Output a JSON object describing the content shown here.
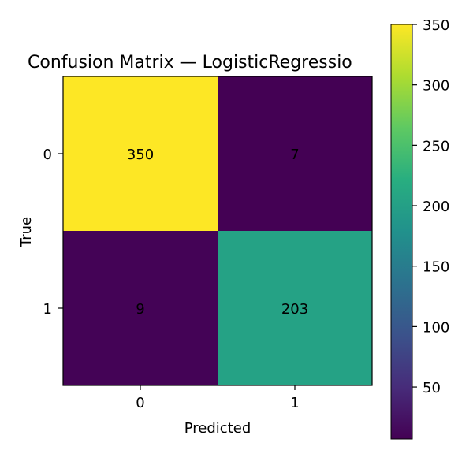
{
  "chart_data": {
    "type": "heatmap",
    "title": "Confusion Matrix — LogisticRegressio",
    "xlabel": "Predicted",
    "ylabel": "True",
    "x_categories": [
      "0",
      "1"
    ],
    "y_categories": [
      "0",
      "1"
    ],
    "values": [
      [
        350,
        7
      ],
      [
        9,
        203
      ]
    ],
    "colormap": "viridis",
    "colorbar": {
      "min": 7,
      "max": 350,
      "ticks": [
        "50",
        "100",
        "150",
        "200",
        "250",
        "300",
        "350"
      ]
    },
    "grid": false
  }
}
